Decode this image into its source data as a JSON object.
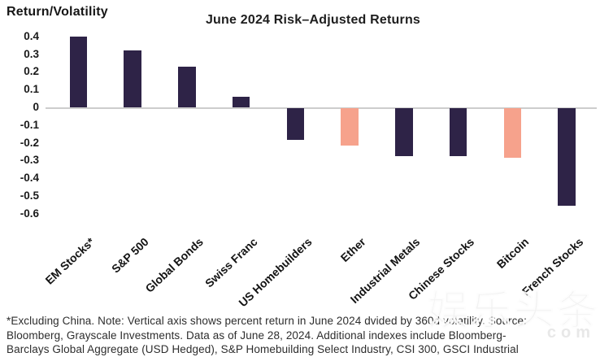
{
  "chart_data": {
    "type": "bar",
    "title": "June 2024 Risk–Adjusted Returns",
    "ylabel": "Return/Volatility",
    "categories": [
      "EM Stocks*",
      "S&P 500",
      "Global Bonds",
      "Swiss Franc",
      "US Homebuilders",
      "Ether",
      "Industrial Metals",
      "Chinese Stocks",
      "Bitcoin",
      "French Stocks"
    ],
    "values": [
      0.4,
      0.32,
      0.23,
      0.06,
      -0.18,
      -0.21,
      -0.27,
      -0.27,
      -0.28,
      -0.55
    ],
    "bar_colors": [
      "dark",
      "dark",
      "dark",
      "dark",
      "dark",
      "accent",
      "dark",
      "dark",
      "accent",
      "dark"
    ],
    "colors": {
      "dark": "#2E2347",
      "accent": "#F6A28C",
      "zero_line": "#CDCDCD"
    },
    "ylim": [
      -0.6,
      0.4
    ],
    "ytick_labels": [
      "0.4",
      "0.3",
      "0.2",
      "0.1",
      "0",
      "-0.1",
      "-0.2",
      "-0.3",
      "-0.4",
      "-0.5",
      "-0.6"
    ],
    "grid": false,
    "legend": false,
    "xlabel": ""
  },
  "footnote": {
    "lines": [
      "*Excluding China. Note: Vertical axis shows percent return in June 2024 dvided by 360d volatility. Source:",
      "Bloomberg, Grayscale Investments. Data as of June 28, 2024. Additional indexes include Bloomberg-",
      "Barclays Global Aggregate (USD Hedged), S&P Homebuilding Select Industry, CSI 300, GSCI Industrial"
    ]
  },
  "watermark": {
    "large": "娱乐头条",
    "small": "com"
  }
}
